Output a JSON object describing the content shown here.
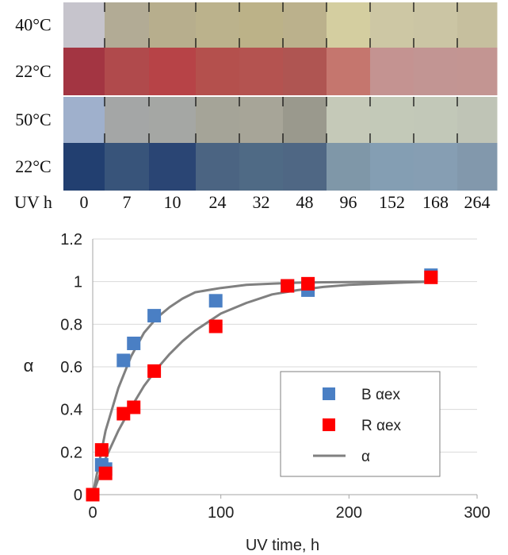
{
  "swatches": {
    "times": [
      "0",
      "7",
      "10",
      "24",
      "32",
      "48",
      "96",
      "152",
      "168",
      "264"
    ],
    "uv_label": "UV h",
    "rows": [
      {
        "label": "40°C",
        "colors": [
          "#c6c4cc",
          "#b2ab95",
          "#b7ae8d",
          "#bbb28c",
          "#bcb288",
          "#bbb18c",
          "#d4cea0",
          "#cdc7a4",
          "#cbc5a4",
          "#c6bf9e"
        ]
      },
      {
        "label": "22°C",
        "colors": [
          "#a33542",
          "#b04a4c",
          "#b74347",
          "#b4504d",
          "#b45350",
          "#af5552",
          "#c5766e",
          "#c49391",
          "#c29593",
          "#c39592"
        ]
      },
      {
        "label": "50°C",
        "colors": [
          "#9fb0cc",
          "#a4a6a6",
          "#a5a7a4",
          "#a5a498",
          "#a7a598",
          "#9a998d",
          "#c5c9b8",
          "#c3c9b8",
          "#c2c8b8",
          "#bfc4b6"
        ]
      },
      {
        "label": "22°C",
        "colors": [
          "#223f70",
          "#38547a",
          "#2a4574",
          "#4b6482",
          "#4f6a85",
          "#4f6784",
          "#7f97a8",
          "#849eb3",
          "#869eb3",
          "#8298ac"
        ]
      }
    ]
  },
  "colors": {
    "blue_series": "#4a7fc4",
    "red_series": "#ff0000",
    "model_curve": "#808080",
    "legend_border": "#7f7f7f",
    "grid": "#d9d9d9"
  },
  "chart_data": {
    "type": "scatter",
    "xlabel": "UV time, h",
    "ylabel": "α",
    "xlim": [
      0,
      300
    ],
    "ylim": [
      0,
      1.2
    ],
    "xticks": [
      0,
      100,
      200,
      300
    ],
    "yticks": [
      0,
      0.2,
      0.4,
      0.6,
      0.8,
      1.0,
      1.2
    ],
    "xtick_labels": [
      "0",
      "100",
      "200",
      "300"
    ],
    "ytick_labels": [
      "0",
      "0.2",
      "0.4",
      "0.6",
      "0.8",
      "1",
      "1.2"
    ],
    "grid": "horizontal",
    "legend_position": "lower-right",
    "series": [
      {
        "name": "B αex",
        "marker": "square",
        "x": [
          0,
          7,
          10,
          24,
          32,
          48,
          96,
          152,
          168,
          264
        ],
        "y": [
          0,
          0.14,
          0.12,
          0.63,
          0.71,
          0.84,
          0.91,
          0.98,
          0.96,
          1.03
        ]
      },
      {
        "name": "R αex",
        "marker": "square",
        "x": [
          0,
          7,
          10,
          24,
          32,
          48,
          96,
          152,
          168,
          264
        ],
        "y": [
          0,
          0.21,
          0.1,
          0.38,
          0.41,
          0.58,
          0.79,
          0.98,
          0.99,
          1.02
        ]
      }
    ],
    "curves": [
      {
        "name": "α",
        "x": [
          0,
          10,
          20,
          30,
          40,
          50,
          60,
          70,
          80,
          90,
          100,
          120,
          140,
          160,
          180,
          200,
          240,
          264
        ],
        "y": [
          0,
          0.3,
          0.5,
          0.65,
          0.76,
          0.83,
          0.88,
          0.92,
          0.95,
          0.96,
          0.97,
          0.985,
          0.99,
          0.995,
          0.997,
          0.998,
          1.0,
          1.0
        ]
      },
      {
        "name": "",
        "x": [
          0,
          10,
          20,
          30,
          40,
          50,
          60,
          70,
          80,
          90,
          100,
          120,
          140,
          160,
          180,
          200,
          240,
          264
        ],
        "y": [
          0,
          0.17,
          0.3,
          0.41,
          0.51,
          0.59,
          0.66,
          0.72,
          0.77,
          0.81,
          0.85,
          0.9,
          0.94,
          0.96,
          0.975,
          0.985,
          0.995,
          1.0
        ]
      }
    ]
  }
}
